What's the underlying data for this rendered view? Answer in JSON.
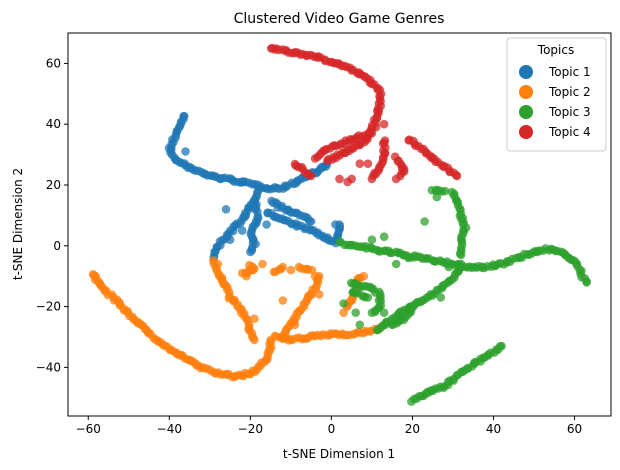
{
  "chart_data": {
    "type": "scatter",
    "title": "Clustered Video Game Genres",
    "xlabel": "t-SNE Dimension 1",
    "ylabel": "t-SNE Dimension 2",
    "xlim": [
      -65,
      69
    ],
    "ylim": [
      -56,
      70
    ],
    "xticks": [
      -60,
      -40,
      -20,
      0,
      20,
      40,
      60
    ],
    "yticks": [
      -40,
      -20,
      0,
      20,
      40,
      60
    ],
    "grid": false,
    "legend": {
      "title": "Topics",
      "placement": "top-right"
    },
    "series": [
      {
        "name": "Topic 1",
        "color": "#1f77b4",
        "paths": [
          [
            [
              -36,
              43
            ],
            [
              -37,
              41
            ],
            [
              -38,
              38
            ],
            [
              -39,
              35
            ],
            [
              -40,
              32
            ],
            [
              -39,
              29
            ],
            [
              -37,
              27
            ],
            [
              -34,
              25
            ],
            [
              -30,
              23
            ],
            [
              -26,
              22
            ],
            [
              -22,
              21
            ],
            [
              -19,
              20
            ],
            [
              -15,
              19
            ],
            [
              -12,
              19
            ],
            [
              -9,
              21
            ],
            [
              -6,
              23
            ],
            [
              -3,
              25
            ],
            [
              -1,
              27
            ]
          ],
          [
            [
              -18,
              18
            ],
            [
              -19,
              15
            ],
            [
              -21,
              11
            ],
            [
              -23,
              7
            ],
            [
              -26,
              3
            ],
            [
              -28,
              0
            ],
            [
              -29,
              -4
            ]
          ],
          [
            [
              -19,
              14
            ],
            [
              -18,
              10
            ],
            [
              -19,
              7
            ],
            [
              -20,
              4
            ],
            [
              -19,
              1
            ],
            [
              -20,
              -2
            ]
          ],
          [
            [
              -16,
              11
            ],
            [
              -13,
              9
            ],
            [
              -9,
              7
            ],
            [
              -5,
              5
            ],
            [
              -2,
              3
            ],
            [
              1,
              1
            ],
            [
              2,
              7
            ]
          ],
          [
            [
              -15,
              15
            ],
            [
              -13,
              13
            ],
            [
              -10,
              11
            ],
            [
              -7,
              10
            ],
            [
              -5,
              8
            ]
          ]
        ],
        "points": [
          [
            -36,
            31
          ],
          [
            -22,
            5
          ],
          [
            -25,
            2
          ],
          [
            -16,
            7
          ],
          [
            -2,
            26
          ],
          [
            -4,
            24
          ],
          [
            1,
            7
          ],
          [
            -26,
            12
          ]
        ]
      },
      {
        "name": "Topic 2",
        "color": "#ff7f0e",
        "paths": [
          [
            [
              -59,
              -9
            ],
            [
              -57,
              -13
            ],
            [
              -54,
              -17
            ],
            [
              -51,
              -21
            ],
            [
              -48,
              -25
            ],
            [
              -44,
              -30
            ],
            [
              -40,
              -34
            ],
            [
              -36,
              -37
            ],
            [
              -32,
              -40
            ],
            [
              -28,
              -42
            ],
            [
              -24,
              -43
            ],
            [
              -20,
              -42
            ],
            [
              -18,
              -40
            ],
            [
              -16,
              -37
            ],
            [
              -15,
              -34
            ],
            [
              -15,
              -31
            ]
          ],
          [
            [
              -29,
              -5
            ],
            [
              -28,
              -9
            ],
            [
              -26,
              -13
            ],
            [
              -25,
              -17
            ],
            [
              -23,
              -20
            ],
            [
              -21,
              -24
            ],
            [
              -20,
              -28
            ],
            [
              -19,
              -31
            ]
          ],
          [
            [
              -14,
              -30
            ],
            [
              -10,
              -31
            ],
            [
              -5,
              -30
            ],
            [
              0,
              -29
            ],
            [
              5,
              -29
            ],
            [
              10,
              -28
            ],
            [
              12,
              -27
            ]
          ],
          [
            [
              -12,
              -30
            ],
            [
              -10,
              -26
            ],
            [
              -8,
              -22
            ],
            [
              -6,
              -18
            ],
            [
              -4,
              -14
            ],
            [
              -3,
              -10
            ]
          ],
          [
            [
              -14,
              -9
            ],
            [
              -12,
              -7
            ]
          ],
          [
            [
              -20,
              -6
            ],
            [
              -19,
              -8
            ],
            [
              -22,
              -9
            ]
          ],
          [
            [
              -5,
              -8
            ],
            [
              -8,
              -7
            ]
          ],
          [
            [
              4,
              -20
            ],
            [
              6,
              -16
            ],
            [
              6,
              -12
            ],
            [
              8,
              -10
            ]
          ]
        ],
        "points": [
          [
            -21,
            -10
          ],
          [
            -17,
            -6
          ],
          [
            -10,
            -8
          ],
          [
            -4,
            -10
          ],
          [
            -3,
            -16
          ],
          [
            -12,
            -18
          ],
          [
            -9,
            -26
          ],
          [
            3,
            -22
          ],
          [
            5,
            -18
          ],
          [
            -28,
            -6
          ],
          [
            -19,
            -24
          ]
        ]
      },
      {
        "name": "Topic 3",
        "color": "#2ca02c",
        "paths": [
          [
            [
              2,
              1
            ],
            [
              6,
              0
            ],
            [
              10,
              -1
            ],
            [
              14,
              -2
            ],
            [
              18,
              -3
            ],
            [
              22,
              -4
            ],
            [
              26,
              -5
            ],
            [
              30,
              -6
            ],
            [
              34,
              -7
            ],
            [
              38,
              -7
            ],
            [
              42,
              -6
            ],
            [
              46,
              -4
            ],
            [
              50,
              -2
            ],
            [
              54,
              -1
            ],
            [
              57,
              -2
            ],
            [
              59,
              -4
            ],
            [
              61,
              -7
            ],
            [
              62,
              -10
            ],
            [
              63,
              -12
            ]
          ],
          [
            [
              11,
              -28
            ],
            [
              14,
              -25
            ],
            [
              17,
              -22
            ],
            [
              21,
              -19
            ],
            [
              25,
              -16
            ],
            [
              28,
              -13
            ],
            [
              31,
              -9
            ],
            [
              32,
              -6
            ]
          ],
          [
            [
              30,
              18
            ],
            [
              31,
              14
            ],
            [
              32,
              10
            ],
            [
              33,
              6
            ],
            [
              32,
              2
            ],
            [
              32,
              -3
            ]
          ],
          [
            [
              20,
              -51
            ],
            [
              24,
              -48
            ],
            [
              28,
              -46
            ],
            [
              32,
              -42
            ],
            [
              36,
              -38
            ],
            [
              40,
              -35
            ],
            [
              42,
              -33
            ]
          ],
          [
            [
              5,
              -12
            ],
            [
              7,
              -13
            ],
            [
              10,
              -14
            ],
            [
              12,
              -16
            ],
            [
              12,
              -20
            ],
            [
              10,
              -22
            ]
          ],
          [
            [
              5,
              -15
            ],
            [
              9,
              -17
            ]
          ],
          [
            [
              20,
              -20
            ],
            [
              18,
              -24
            ],
            [
              15,
              -26
            ]
          ],
          [
            [
              25,
              18
            ],
            [
              28,
              18
            ]
          ]
        ],
        "points": [
          [
            10,
            2
          ],
          [
            13,
            3
          ],
          [
            19,
            -4
          ],
          [
            29,
            -7
          ],
          [
            26,
            16
          ],
          [
            23,
            8
          ],
          [
            16,
            -6
          ],
          [
            6,
            -22
          ],
          [
            7,
            -26
          ],
          [
            13,
            -22
          ],
          [
            3,
            -19
          ],
          [
            27,
            -17
          ]
        ]
      },
      {
        "name": "Topic 4",
        "color": "#d62728",
        "paths": [
          [
            [
              -15,
              65
            ],
            [
              -11,
              64
            ],
            [
              -7,
              63
            ],
            [
              -3,
              62
            ],
            [
              1,
              60
            ],
            [
              5,
              58
            ],
            [
              9,
              55
            ],
            [
              12,
              51
            ],
            [
              12,
              47
            ],
            [
              11,
              42
            ],
            [
              10,
              38
            ],
            [
              8,
              34
            ],
            [
              5,
              32
            ],
            [
              2,
              30
            ],
            [
              -1,
              28
            ]
          ],
          [
            [
              -4,
              29
            ],
            [
              -1,
              32
            ],
            [
              3,
              34
            ],
            [
              7,
              36
            ],
            [
              10,
              37
            ]
          ],
          [
            [
              13,
              35
            ],
            [
              13,
              30
            ],
            [
              12,
              26
            ],
            [
              10,
              22
            ]
          ],
          [
            [
              19,
              35
            ],
            [
              22,
              32
            ],
            [
              25,
              29
            ],
            [
              28,
              26
            ],
            [
              31,
              23
            ]
          ],
          [
            [
              16,
              29
            ],
            [
              18,
              25
            ],
            [
              17,
              23
            ]
          ],
          [
            [
              -9,
              27
            ],
            [
              -7,
              25
            ],
            [
              -5,
              23
            ]
          ]
        ],
        "points": [
          [
            4,
            21
          ],
          [
            5,
            22
          ],
          [
            7,
            27
          ],
          [
            9,
            27
          ],
          [
            11,
            39
          ],
          [
            13,
            40
          ],
          [
            2,
            22
          ],
          [
            16,
            22
          ]
        ]
      }
    ]
  }
}
